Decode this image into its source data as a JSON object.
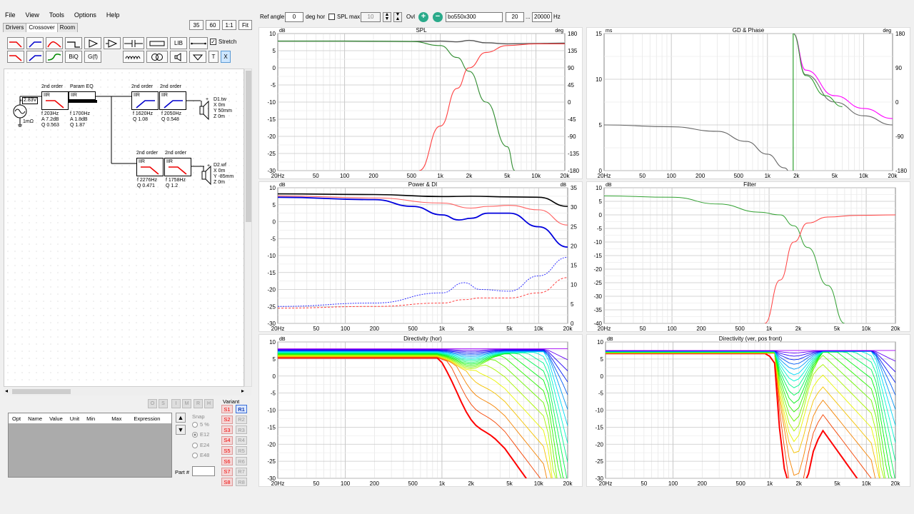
{
  "menu": [
    "File",
    "View",
    "Tools",
    "Options",
    "Help"
  ],
  "tabs": [
    "Drivers",
    "Crossover",
    "Room"
  ],
  "zoom_buttons": [
    "35",
    "60",
    "1:1",
    "Fit"
  ],
  "toolbar": {
    "lib": "LIB",
    "stretch": "Stretch",
    "biq": "BiQ",
    "gf": "G(f)",
    "t": "T",
    "x": "X"
  },
  "schematic": {
    "source_voltage": "2.83V",
    "source_res": "1mΩ",
    "blocks": {
      "hp1": {
        "title": "2nd order",
        "type": "IIR",
        "params": [
          "f  203Hz",
          "A  7.2dB",
          "Q  0.563"
        ]
      },
      "peq": {
        "title": "Param EQ",
        "type": "IIR",
        "params": [
          "f  1700Hz",
          "A  1.8dB",
          "Q  1.87"
        ]
      },
      "tw1": {
        "title": "2nd order",
        "type": "IIR",
        "params": [
          "f  1620Hz",
          "Q  1.08"
        ]
      },
      "tw2": {
        "title": "2nd order",
        "type": "IIR",
        "params": [
          "f  2050Hz",
          "Q  0.548"
        ]
      },
      "wf1": {
        "title": "2nd order",
        "type": "IIR",
        "params": [
          "f  2276Hz",
          "Q  0.471"
        ]
      },
      "wf2": {
        "title": "2nd order",
        "type": "IIR",
        "params": [
          "f  1758Hz",
          "Q  1.2"
        ]
      }
    },
    "d1": {
      "name": "D1.tw",
      "lines": [
        "X 0m",
        "Y 50mm",
        "Z 0m"
      ]
    },
    "d2": {
      "name": "D2.wf",
      "lines": [
        "X 0m",
        "Y -85mm",
        "Z 0m"
      ]
    }
  },
  "state_buttons": [
    "O",
    "S",
    "I",
    "M",
    "R",
    "H"
  ],
  "param_table": {
    "columns": [
      "Opt",
      "Name",
      "Value",
      "Unit",
      "Min",
      "Max",
      "Expression"
    ]
  },
  "snap": {
    "label": "Snap",
    "options": [
      "5 %",
      "E12",
      "E24",
      "E48"
    ],
    "selected": "E12"
  },
  "part_label": "Part #",
  "variant": {
    "label": "Variant",
    "s": [
      "S1",
      "S2",
      "S3",
      "S4",
      "S5",
      "S6",
      "S7",
      "S8"
    ],
    "r": [
      "R1",
      "R2",
      "R3",
      "R4",
      "R5",
      "R6",
      "R7",
      "R8"
    ],
    "active": "R1"
  },
  "topbar": {
    "ref_angle_label": "Ref angle",
    "ref_angle": "0",
    "deg_hor": "deg hor",
    "spl_max": "SPL max",
    "spl_max_val": "10",
    "ovl": "Ovl",
    "preset": "bo550x300",
    "f_lo": "20",
    "dots": "...",
    "f_hi": "20000",
    "hz": "Hz"
  },
  "charts": {
    "spl": {
      "title": "SPL",
      "left_unit": "dB",
      "right_unit": "deg",
      "y_left": [
        "10",
        "5",
        "0",
        "-5",
        "-10",
        "-15",
        "-20",
        "-25",
        "-30"
      ],
      "y_right": [
        "180",
        "135",
        "90",
        "45",
        "0",
        "-45",
        "-90",
        "-135",
        "-180"
      ]
    },
    "gd": {
      "title": "GD & Phase",
      "left_unit": "ms",
      "right_unit": "deg",
      "y_left": [
        "15",
        "10",
        "5",
        "0"
      ],
      "y_right": [
        "180",
        "90",
        "0",
        "-90",
        "-180"
      ]
    },
    "power": {
      "title": "Power & DI",
      "left_unit": "dB",
      "right_unit": "dB",
      "y_left": [
        "10",
        "5",
        "0",
        "-5",
        "-10",
        "-15",
        "-20",
        "-25",
        "-30"
      ],
      "y_right": [
        "35",
        "30",
        "25",
        "20",
        "15",
        "10",
        "5",
        "0"
      ]
    },
    "filter": {
      "title": "Filter",
      "left_unit": "dB",
      "y_left": [
        "10",
        "5",
        "0",
        "-5",
        "-10",
        "-15",
        "-20",
        "-25",
        "-30",
        "-35",
        "-40"
      ]
    },
    "dirh": {
      "title": "Directivity (hor)",
      "left_unit": "dB",
      "y_left": [
        "10",
        "5",
        "0",
        "-5",
        "-10",
        "-15",
        "-20",
        "-25",
        "-30"
      ]
    },
    "dirv": {
      "title": "Directivity (ver, pos front)",
      "left_unit": "dB",
      "y_left": [
        "10",
        "5",
        "0",
        "-5",
        "-10",
        "-15",
        "-20",
        "-25",
        "-30"
      ]
    }
  },
  "x_ticks": [
    "20Hz",
    "50",
    "100",
    "200",
    "500",
    "1k",
    "2k",
    "5k",
    "10k",
    "20k"
  ],
  "chart_data": [
    {
      "type": "line",
      "title": "SPL",
      "ylim": [
        -30,
        10
      ],
      "xlim": [
        20,
        20000
      ],
      "x_scale": "log",
      "series": [
        {
          "color": "#555555",
          "x": [
            20,
            100,
            500,
            1000,
            1500,
            2000,
            3000,
            5000,
            10000,
            20000
          ],
          "y": [
            7.8,
            7.8,
            7.7,
            7.8,
            7.6,
            8.0,
            7.3,
            7.0,
            7.1,
            7.2
          ]
        },
        {
          "color": "#2e8b2e",
          "x": [
            20,
            100,
            500,
            1000,
            1500,
            2000,
            3000,
            5000,
            6000
          ],
          "y": [
            7.8,
            7.8,
            7.7,
            6.5,
            3,
            -1,
            -10,
            -23,
            -30
          ]
        },
        {
          "color": "#ff4040",
          "x": [
            600,
            1000,
            1500,
            2000,
            3000,
            5000,
            10000,
            20000
          ],
          "y": [
            -30,
            -17,
            -6,
            0,
            4.5,
            6.5,
            7,
            7
          ]
        }
      ]
    },
    {
      "type": "line",
      "title": "GD & Phase",
      "ylim": [
        0,
        15
      ],
      "xlim": [
        20,
        20000
      ],
      "x_scale": "log",
      "series": [
        {
          "color": "#666666",
          "x": [
            20,
            100,
            300,
            600,
            1000,
            1500,
            1800,
            1850,
            2500,
            5000,
            10000,
            20000
          ],
          "y": [
            5.0,
            4.8,
            4.3,
            3.2,
            1.8,
            0.3,
            -0.5,
            15,
            10.5,
            7.5,
            6,
            5
          ]
        },
        {
          "color": "#ff00ff",
          "x": [
            1850,
            2500,
            5000,
            10000,
            20000
          ],
          "y": [
            15,
            11,
            8.2,
            6.8,
            5.7
          ]
        },
        {
          "color": "#30a030",
          "x": [
            1850,
            2500,
            4000,
            6000
          ],
          "y": [
            15,
            10.4,
            8.2,
            7
          ]
        }
      ]
    },
    {
      "type": "line",
      "title": "Power & DI",
      "ylim": [
        -30,
        10
      ],
      "xlim": [
        20,
        20000
      ],
      "x_scale": "log",
      "series": [
        {
          "color": "#000000",
          "x": [
            20,
            200,
            1000,
            2000,
            5000,
            10000,
            20000
          ],
          "y": [
            8.2,
            8,
            7.4,
            7.5,
            7.3,
            7.2,
            4.5
          ]
        },
        {
          "color": "#ff6060",
          "x": [
            20,
            200,
            1000,
            2000,
            3000,
            5000,
            10000,
            20000
          ],
          "y": [
            7.6,
            7,
            5.5,
            4,
            4.5,
            4.8,
            3.5,
            -1
          ]
        },
        {
          "color": "#0000dd",
          "x": [
            20,
            200,
            500,
            1000,
            1500,
            2000,
            3000,
            5000,
            10000,
            20000
          ],
          "y": [
            7.2,
            6.5,
            4.5,
            2,
            0.5,
            1,
            2.5,
            2.5,
            -1.5,
            -7.5
          ]
        },
        {
          "color": "#3030ff",
          "x": [
            20,
            200,
            1000,
            1700,
            2500,
            5000,
            10000,
            20000
          ],
          "y": [
            -25,
            -24,
            -21,
            -18,
            -20,
            -20.5,
            -16,
            -10.5
          ]
        },
        {
          "color": "#ff4040",
          "x": [
            20,
            200,
            1000,
            1700,
            2500,
            5000,
            10000,
            20000
          ],
          "y": [
            -25.5,
            -25,
            -24,
            -23,
            -22.5,
            -22.5,
            -21,
            -16.5
          ]
        }
      ]
    },
    {
      "type": "line",
      "title": "Filter",
      "ylim": [
        -40,
        10
      ],
      "xlim": [
        20,
        20000
      ],
      "x_scale": "log",
      "series": [
        {
          "color": "#30a030",
          "x": [
            20,
            100,
            300,
            800,
            1300,
            1800,
            2500,
            4000,
            6000
          ],
          "y": [
            7,
            6.5,
            4,
            1,
            0,
            -4,
            -12,
            -26,
            -40
          ]
        },
        {
          "color": "#ff4040",
          "x": [
            900,
            1300,
            1800,
            2500,
            4000,
            8000,
            20000
          ],
          "y": [
            -40,
            -24,
            -10,
            -3,
            -0.8,
            -0.2,
            0
          ]
        }
      ]
    },
    {
      "type": "line",
      "title": "Directivity (hor)",
      "ylim": [
        -30,
        10
      ],
      "xlim": [
        20,
        20000
      ],
      "x_scale": "log",
      "note_free": ""
    },
    {
      "type": "line",
      "title": "Directivity (ver, pos front)",
      "ylim": [
        -30,
        10
      ],
      "xlim": [
        20,
        20000
      ],
      "x_scale": "log"
    }
  ]
}
